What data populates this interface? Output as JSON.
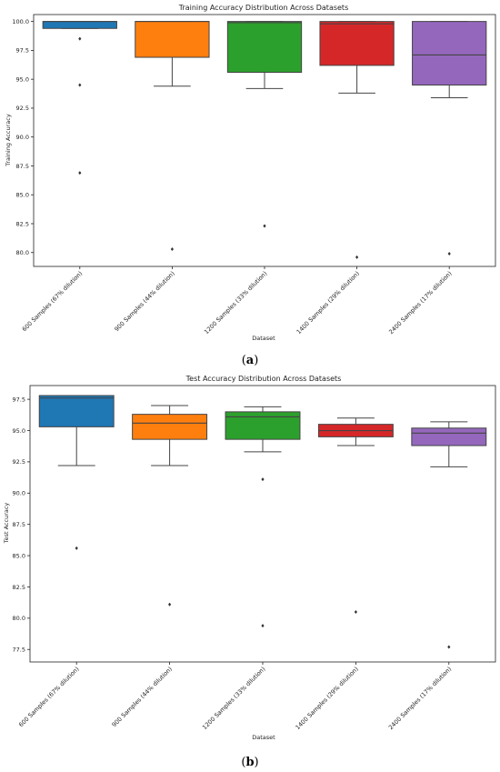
{
  "figure": {
    "caption_a": "a",
    "caption_b": "b"
  },
  "chart_data": [
    {
      "type": "box",
      "title": "Training Accuracy Distribution Across Datasets",
      "xlabel": "Dataset",
      "ylabel": "Training Accuracy",
      "ylim": [
        78.8,
        100.6
      ],
      "yticks": [
        80.0,
        82.5,
        85.0,
        87.5,
        90.0,
        92.5,
        95.0,
        97.5,
        100.0
      ],
      "ytick_labels": [
        "80.0",
        "82.5",
        "85.0",
        "87.5",
        "90.0",
        "92.5",
        "95.0",
        "97.5",
        "100.0"
      ],
      "categories": [
        "600 Samples (67% dilution)",
        "900 Samples (44% dilution)",
        "1200 Samples (33% dilution)",
        "1400 Samples (29% dilution)",
        "2400 Samples (17% dilution)"
      ],
      "colors": [
        "#1f77b4",
        "#ff7f0e",
        "#2ca02c",
        "#d62728",
        "#9467bd"
      ],
      "boxes": [
        {
          "whisker_low": 99.4,
          "q1": 99.4,
          "median": 100.0,
          "q3": 100.0,
          "whisker_high": 100.0,
          "outliers": [
            98.5,
            94.5,
            86.9
          ]
        },
        {
          "whisker_low": 94.4,
          "q1": 96.9,
          "median": 100.0,
          "q3": 100.0,
          "whisker_high": 100.0,
          "outliers": [
            80.3
          ]
        },
        {
          "whisker_low": 94.2,
          "q1": 95.6,
          "median": 99.9,
          "q3": 100.0,
          "whisker_high": 100.0,
          "outliers": [
            82.3
          ]
        },
        {
          "whisker_low": 93.8,
          "q1": 96.2,
          "median": 99.8,
          "q3": 100.0,
          "whisker_high": 100.0,
          "outliers": [
            79.6
          ]
        },
        {
          "whisker_low": 93.4,
          "q1": 94.5,
          "median": 97.1,
          "q3": 100.0,
          "whisker_high": 100.0,
          "outliers": [
            79.9
          ]
        }
      ]
    },
    {
      "type": "box",
      "title": "Test Accuracy Distribution Across Datasets",
      "xlabel": "Dataset",
      "ylabel": "Test Accuracy",
      "ylim": [
        76.5,
        98.6
      ],
      "yticks": [
        77.5,
        80.0,
        82.5,
        85.0,
        87.5,
        90.0,
        92.5,
        95.0,
        97.5
      ],
      "ytick_labels": [
        "77.5",
        "80.0",
        "82.5",
        "85.0",
        "87.5",
        "90.0",
        "92.5",
        "95.0",
        "97.5"
      ],
      "categories": [
        "600 Samples (67% dilution)",
        "900 Samples (44% dilution)",
        "1200 Samples (33% dilution)",
        "1400 Samples (29% dilution)",
        "2400 Samples (17% dilution)"
      ],
      "colors": [
        "#1f77b4",
        "#ff7f0e",
        "#2ca02c",
        "#d62728",
        "#9467bd"
      ],
      "boxes": [
        {
          "whisker_low": 92.2,
          "q1": 95.3,
          "median": 97.6,
          "q3": 97.8,
          "whisker_high": 97.8,
          "outliers": [
            85.6
          ]
        },
        {
          "whisker_low": 92.2,
          "q1": 94.3,
          "median": 95.6,
          "q3": 96.3,
          "whisker_high": 97.0,
          "outliers": [
            81.1
          ]
        },
        {
          "whisker_low": 93.3,
          "q1": 94.3,
          "median": 96.1,
          "q3": 96.5,
          "whisker_high": 96.9,
          "outliers": [
            91.1,
            79.4
          ]
        },
        {
          "whisker_low": 93.8,
          "q1": 94.5,
          "median": 95.0,
          "q3": 95.5,
          "whisker_high": 96.0,
          "outliers": [
            80.5
          ]
        },
        {
          "whisker_low": 92.1,
          "q1": 93.8,
          "median": 94.8,
          "q3": 95.2,
          "whisker_high": 95.7,
          "outliers": [
            77.7
          ]
        }
      ]
    }
  ]
}
